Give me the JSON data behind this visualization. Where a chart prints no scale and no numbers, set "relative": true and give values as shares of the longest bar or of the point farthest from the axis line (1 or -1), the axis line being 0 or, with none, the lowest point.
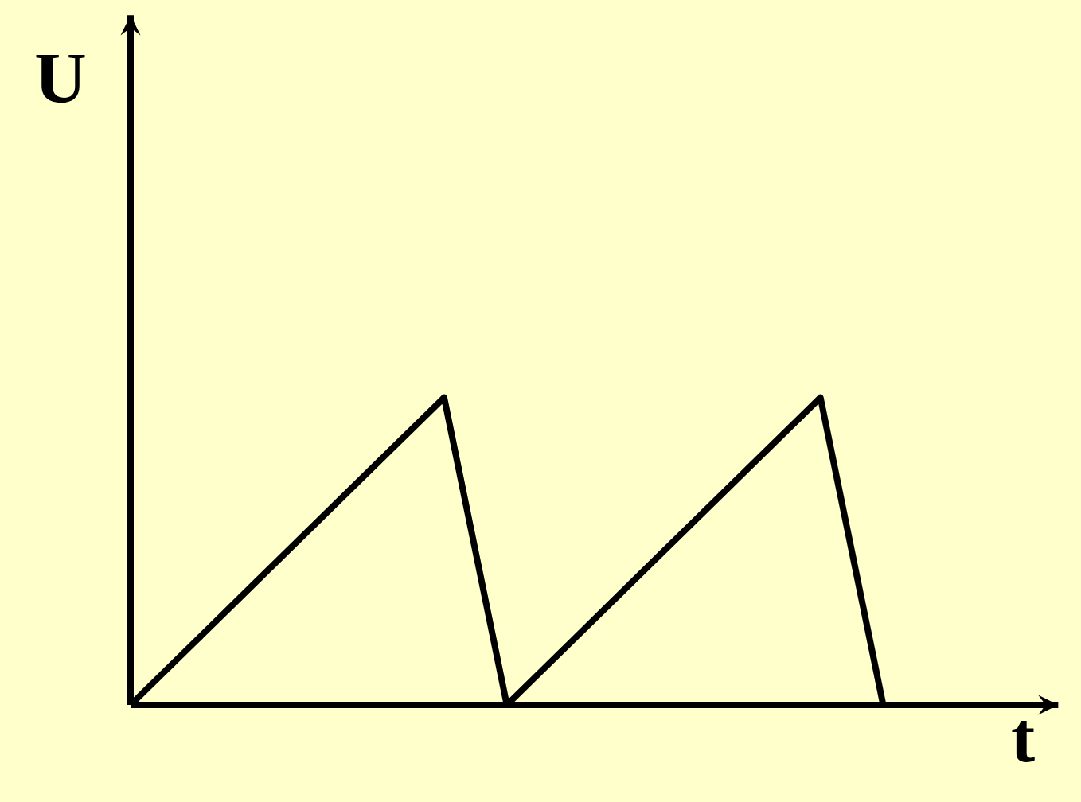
{
  "chart_data": {
    "type": "line",
    "xlabel": "t",
    "ylabel": "U",
    "relative": true,
    "categories": [
      null,
      null,
      null,
      null,
      null,
      null,
      null,
      null,
      null,
      null,
      null,
      null,
      null
    ],
    "series": [
      {
        "color": "#000000",
        "values": [
          0,
          0.2,
          0.4,
          0.6,
          0.8,
          1,
          0,
          0.2,
          0.4,
          0.6,
          0.8,
          1,
          0
        ]
      }
    ]
  }
}
